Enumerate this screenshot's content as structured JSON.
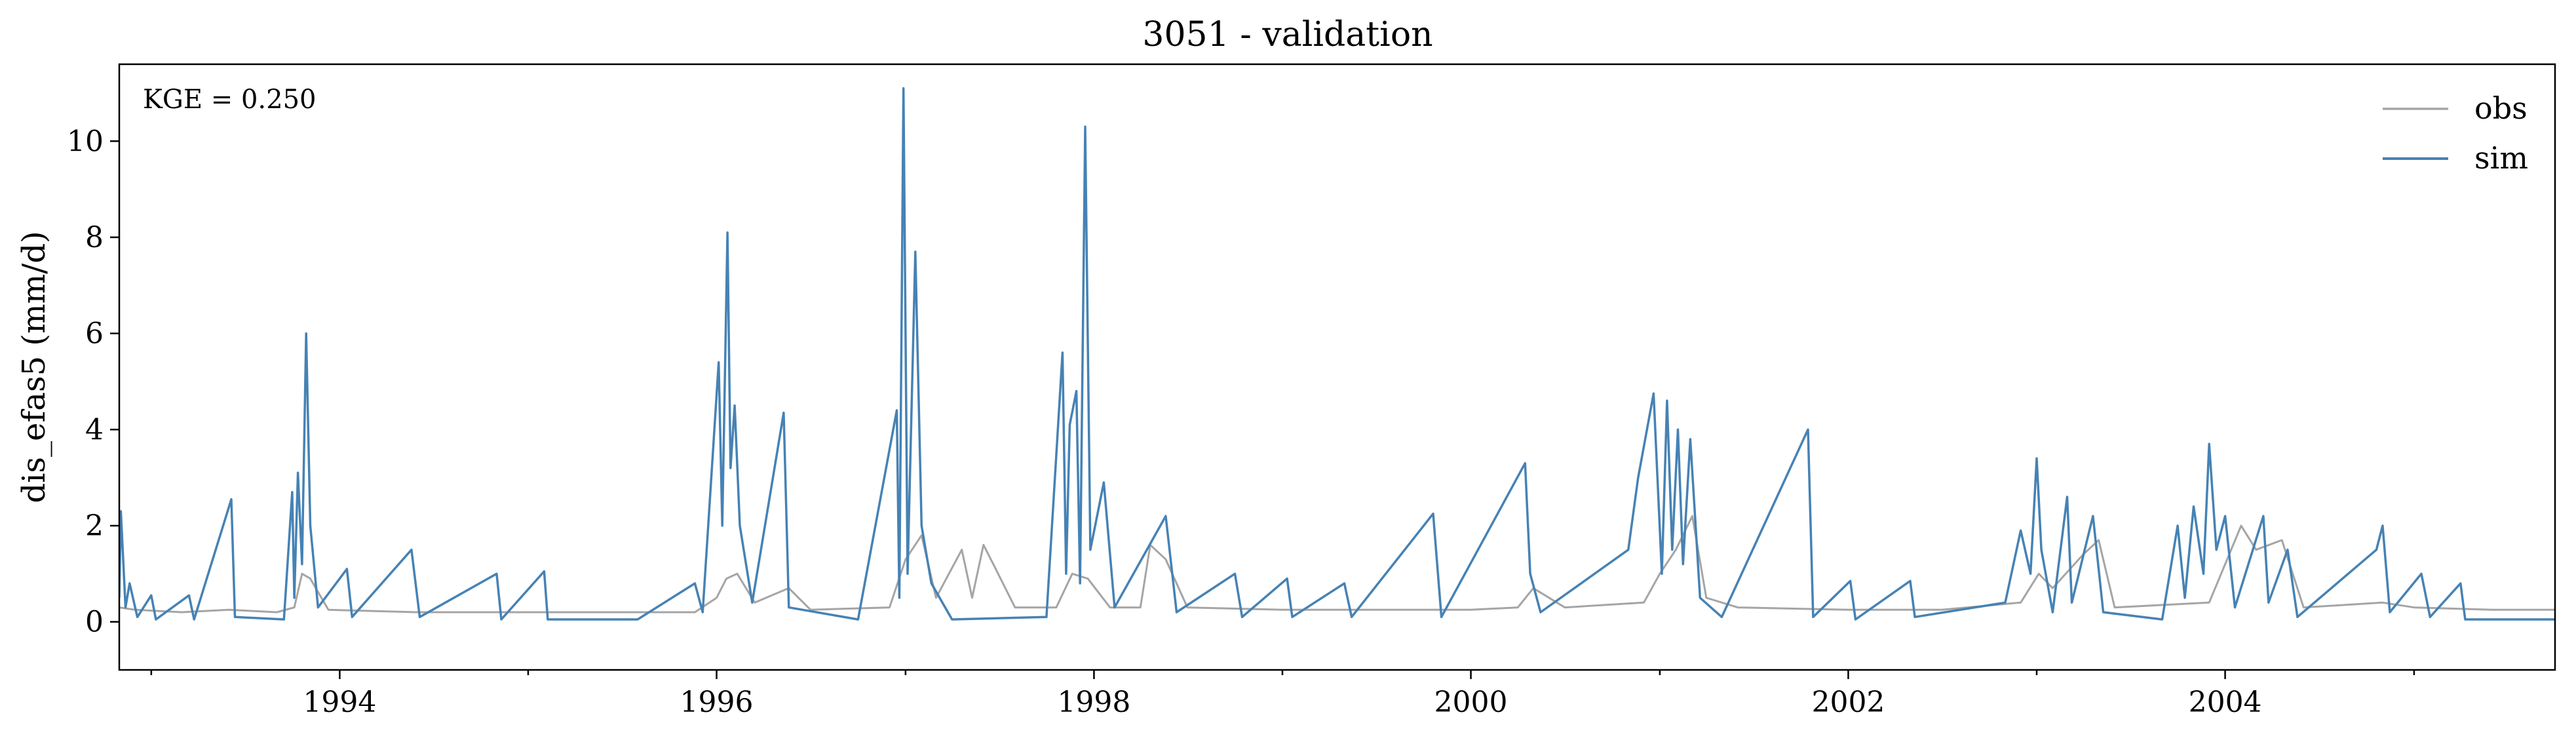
{
  "chart_data": {
    "type": "line",
    "title": "3051 - validation",
    "xlabel": "",
    "ylabel": "dis_efas5 (mm/d)",
    "xlim": [
      "1992-10-31",
      "2005-10-01"
    ],
    "ylim": [
      -1,
      11.6
    ],
    "x_ticks": [
      "1994",
      "1996",
      "1998",
      "2000",
      "2002",
      "2004"
    ],
    "y_ticks": [
      "0",
      "2",
      "4",
      "6",
      "8",
      "10"
    ],
    "annotation": "KGE = 0.250",
    "legend_position": "top-right",
    "grid": false,
    "series": [
      {
        "name": "obs",
        "color": "#a5a5a5",
        "points": [
          [
            "1992-10-31",
            0.3
          ],
          [
            "1992-12-01",
            0.25
          ],
          [
            "1993-03-01",
            0.2
          ],
          [
            "1993-06-01",
            0.25
          ],
          [
            "1993-09-01",
            0.2
          ],
          [
            "1993-10-05",
            0.3
          ],
          [
            "1993-10-20",
            1.0
          ],
          [
            "1993-11-05",
            0.9
          ],
          [
            "1993-12-10",
            0.25
          ],
          [
            "1994-06-01",
            0.2
          ],
          [
            "1994-12-01",
            0.2
          ],
          [
            "1995-06-01",
            0.2
          ],
          [
            "1995-11-20",
            0.2
          ],
          [
            "1996-01-01",
            0.5
          ],
          [
            "1996-01-20",
            0.9
          ],
          [
            "1996-02-10",
            1.0
          ],
          [
            "1996-03-15",
            0.4
          ],
          [
            "1996-05-20",
            0.7
          ],
          [
            "1996-07-01",
            0.25
          ],
          [
            "1996-12-01",
            0.3
          ],
          [
            "1997-01-01",
            1.3
          ],
          [
            "1997-02-01",
            1.8
          ],
          [
            "1997-03-01",
            0.5
          ],
          [
            "1997-04-20",
            1.5
          ],
          [
            "1997-05-10",
            0.5
          ],
          [
            "1997-06-01",
            1.6
          ],
          [
            "1997-06-20",
            1.2
          ],
          [
            "1997-08-01",
            0.3
          ],
          [
            "1997-10-20",
            0.3
          ],
          [
            "1997-11-20",
            1.0
          ],
          [
            "1997-12-20",
            0.9
          ],
          [
            "1998-02-01",
            0.3
          ],
          [
            "1998-04-01",
            0.3
          ],
          [
            "1998-04-20",
            1.6
          ],
          [
            "1998-05-20",
            1.3
          ],
          [
            "1998-07-01",
            0.3
          ],
          [
            "1999-01-01",
            0.25
          ],
          [
            "1999-07-01",
            0.25
          ],
          [
            "2000-01-01",
            0.25
          ],
          [
            "2000-04-01",
            0.3
          ],
          [
            "2000-05-01",
            0.7
          ],
          [
            "2000-07-01",
            0.3
          ],
          [
            "2000-12-01",
            0.4
          ],
          [
            "2001-01-01",
            1.0
          ],
          [
            "2001-02-01",
            1.5
          ],
          [
            "2001-03-05",
            2.2
          ],
          [
            "2001-04-01",
            0.5
          ],
          [
            "2001-06-01",
            0.3
          ],
          [
            "2002-01-01",
            0.25
          ],
          [
            "2002-07-01",
            0.25
          ],
          [
            "2002-12-01",
            0.4
          ],
          [
            "2003-01-05",
            1.0
          ],
          [
            "2003-02-01",
            0.7
          ],
          [
            "2003-04-01",
            1.4
          ],
          [
            "2003-05-01",
            1.7
          ],
          [
            "2003-06-01",
            0.3
          ],
          [
            "2003-12-01",
            0.4
          ],
          [
            "2004-01-01",
            1.2
          ],
          [
            "2004-02-01",
            2.0
          ],
          [
            "2004-03-01",
            1.5
          ],
          [
            "2004-04-20",
            1.7
          ],
          [
            "2004-06-01",
            0.3
          ],
          [
            "2004-11-01",
            0.4
          ],
          [
            "2005-01-01",
            0.3
          ],
          [
            "2005-06-01",
            0.25
          ],
          [
            "2005-10-01",
            0.25
          ]
        ]
      },
      {
        "name": "sim",
        "color": "#4682b4",
        "points": [
          [
            "1992-10-31",
            0.5
          ],
          [
            "1992-11-03",
            2.3
          ],
          [
            "1992-11-12",
            0.3
          ],
          [
            "1992-11-20",
            0.8
          ],
          [
            "1992-12-05",
            0.1
          ],
          [
            "1993-01-01",
            0.55
          ],
          [
            "1993-01-10",
            0.05
          ],
          [
            "1993-03-15",
            0.55
          ],
          [
            "1993-03-25",
            0.05
          ],
          [
            "1993-06-05",
            2.55
          ],
          [
            "1993-06-12",
            0.1
          ],
          [
            "1993-09-15",
            0.05
          ],
          [
            "1993-10-01",
            2.7
          ],
          [
            "1993-10-05",
            0.5
          ],
          [
            "1993-10-12",
            3.1
          ],
          [
            "1993-10-20",
            1.2
          ],
          [
            "1993-10-28",
            6.0
          ],
          [
            "1993-11-05",
            2.0
          ],
          [
            "1993-11-20",
            0.3
          ],
          [
            "1994-01-15",
            1.1
          ],
          [
            "1994-01-25",
            0.1
          ],
          [
            "1994-05-20",
            1.5
          ],
          [
            "1994-06-05",
            0.1
          ],
          [
            "1994-11-01",
            1.0
          ],
          [
            "1994-11-10",
            0.05
          ],
          [
            "1995-02-01",
            1.05
          ],
          [
            "1995-02-08",
            0.05
          ],
          [
            "1995-08-01",
            0.05
          ],
          [
            "1995-11-20",
            0.8
          ],
          [
            "1995-12-05",
            0.2
          ],
          [
            "1996-01-05",
            5.4
          ],
          [
            "1996-01-12",
            2.0
          ],
          [
            "1996-01-22",
            8.1
          ],
          [
            "1996-01-28",
            3.2
          ],
          [
            "1996-02-05",
            4.5
          ],
          [
            "1996-02-15",
            2.0
          ],
          [
            "1996-03-10",
            0.4
          ],
          [
            "1996-05-10",
            4.35
          ],
          [
            "1996-05-20",
            0.3
          ],
          [
            "1996-10-01",
            0.05
          ],
          [
            "1996-12-15",
            4.4
          ],
          [
            "1996-12-20",
            0.5
          ],
          [
            "1996-12-28",
            11.1
          ],
          [
            "1997-01-05",
            1.0
          ],
          [
            "1997-01-20",
            7.7
          ],
          [
            "1997-02-01",
            2.0
          ],
          [
            "1997-02-20",
            0.8
          ],
          [
            "1997-04-01",
            0.05
          ],
          [
            "1997-10-01",
            0.1
          ],
          [
            "1997-11-01",
            5.6
          ],
          [
            "1997-11-08",
            1.0
          ],
          [
            "1997-11-15",
            4.1
          ],
          [
            "1997-11-28",
            4.8
          ],
          [
            "1997-12-05",
            0.8
          ],
          [
            "1997-12-15",
            10.3
          ],
          [
            "1997-12-25",
            1.5
          ],
          [
            "1998-01-20",
            2.9
          ],
          [
            "1998-02-10",
            0.3
          ],
          [
            "1998-05-20",
            2.2
          ],
          [
            "1998-06-10",
            0.2
          ],
          [
            "1998-10-01",
            1.0
          ],
          [
            "1998-10-15",
            0.1
          ],
          [
            "1999-01-10",
            0.9
          ],
          [
            "1999-01-20",
            0.1
          ],
          [
            "1999-05-01",
            0.8
          ],
          [
            "1999-05-15",
            0.1
          ],
          [
            "1999-10-20",
            2.25
          ],
          [
            "1999-11-05",
            0.1
          ],
          [
            "2000-04-15",
            3.3
          ],
          [
            "2000-04-25",
            1.0
          ],
          [
            "2000-05-15",
            0.2
          ],
          [
            "2000-11-01",
            1.5
          ],
          [
            "2000-11-20",
            3.0
          ],
          [
            "2000-12-20",
            4.75
          ],
          [
            "2001-01-05",
            1.0
          ],
          [
            "2001-01-15",
            4.6
          ],
          [
            "2001-01-25",
            1.5
          ],
          [
            "2001-02-05",
            4.0
          ],
          [
            "2001-02-15",
            1.2
          ],
          [
            "2001-03-01",
            3.8
          ],
          [
            "2001-03-20",
            0.5
          ],
          [
            "2001-05-01",
            0.1
          ],
          [
            "2001-10-15",
            4.0
          ],
          [
            "2001-10-25",
            0.1
          ],
          [
            "2002-01-05",
            0.85
          ],
          [
            "2002-01-15",
            0.05
          ],
          [
            "2002-05-01",
            0.85
          ],
          [
            "2002-05-10",
            0.1
          ],
          [
            "2002-11-01",
            0.4
          ],
          [
            "2002-12-01",
            1.9
          ],
          [
            "2002-12-20",
            1.0
          ],
          [
            "2003-01-01",
            3.4
          ],
          [
            "2003-01-10",
            1.5
          ],
          [
            "2003-02-01",
            0.2
          ],
          [
            "2003-03-01",
            2.6
          ],
          [
            "2003-03-10",
            0.4
          ],
          [
            "2003-04-20",
            2.2
          ],
          [
            "2003-05-10",
            0.2
          ],
          [
            "2003-09-01",
            0.05
          ],
          [
            "2003-10-01",
            2.0
          ],
          [
            "2003-10-15",
            0.5
          ],
          [
            "2003-11-01",
            2.4
          ],
          [
            "2003-11-20",
            1.0
          ],
          [
            "2003-12-01",
            3.7
          ],
          [
            "2003-12-15",
            1.5
          ],
          [
            "2004-01-01",
            2.2
          ],
          [
            "2004-01-20",
            0.3
          ],
          [
            "2004-03-15",
            2.2
          ],
          [
            "2004-03-25",
            0.4
          ],
          [
            "2004-05-01",
            1.5
          ],
          [
            "2004-05-20",
            0.1
          ],
          [
            "2004-10-20",
            1.5
          ],
          [
            "2004-11-01",
            2.0
          ],
          [
            "2004-11-15",
            0.2
          ],
          [
            "2005-01-15",
            1.0
          ],
          [
            "2005-02-01",
            0.1
          ],
          [
            "2005-04-01",
            0.8
          ],
          [
            "2005-04-10",
            0.05
          ],
          [
            "2005-10-01",
            0.05
          ]
        ]
      }
    ]
  }
}
